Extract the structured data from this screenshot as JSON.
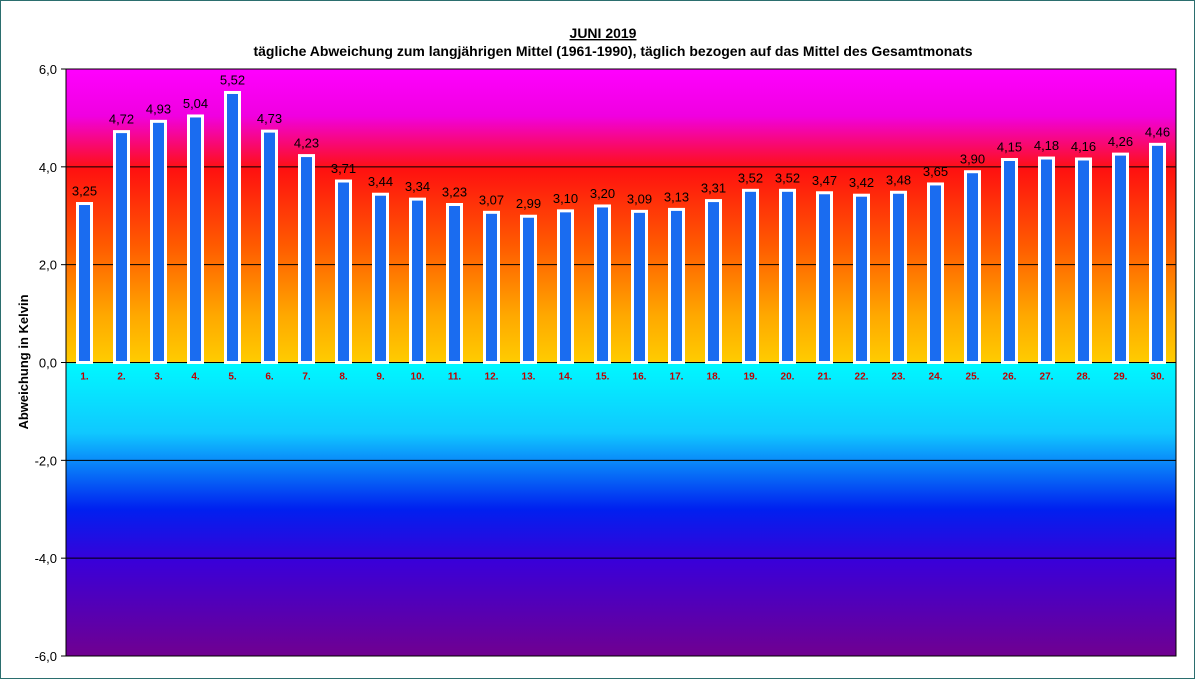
{
  "chart_data": {
    "type": "bar",
    "title": "JUNI 2019",
    "subtitle": "tägliche Abweichung zum langjährigen Mittel (1961-1990), täglich bezogen auf das Mittel des Gesamtmonats",
    "xlabel": "",
    "ylabel": "Abweichung in Kelvin",
    "ylim": [
      -6,
      6
    ],
    "yticks": [
      "6,0",
      "4,0",
      "2,0",
      "0,0",
      "-2,0",
      "-4,0",
      "-6,0"
    ],
    "ytick_values": [
      6,
      4,
      2,
      0,
      -2,
      -4,
      -6
    ],
    "categories": [
      "1.",
      "2.",
      "3.",
      "4.",
      "5.",
      "6.",
      "7.",
      "8.",
      "9.",
      "10.",
      "11.",
      "12.",
      "13.",
      "14.",
      "15.",
      "16.",
      "17.",
      "18.",
      "19.",
      "20.",
      "21.",
      "22.",
      "23.",
      "24.",
      "25.",
      "26.",
      "27.",
      "28.",
      "29.",
      "30."
    ],
    "values": [
      3.25,
      4.72,
      4.93,
      5.04,
      5.52,
      4.73,
      4.23,
      3.71,
      3.44,
      3.34,
      3.23,
      3.07,
      2.99,
      3.1,
      3.2,
      3.09,
      3.13,
      3.31,
      3.52,
      3.52,
      3.47,
      3.42,
      3.48,
      3.65,
      3.9,
      4.15,
      4.18,
      4.16,
      4.26,
      4.46
    ],
    "value_labels": [
      "3,25",
      "4,72",
      "4,93",
      "5,04",
      "5,52",
      "4,73",
      "4,23",
      "3,71",
      "3,44",
      "3,34",
      "3,23",
      "3,07",
      "2,99",
      "3,10",
      "3,20",
      "3,09",
      "3,13",
      "3,31",
      "3,52",
      "3,52",
      "3,47",
      "3,42",
      "3,48",
      "3,65",
      "3,90",
      "4,15",
      "4,18",
      "4,16",
      "4,26",
      "4,46"
    ],
    "grid": true,
    "legend": "none",
    "colors": {
      "bar_fill": "#1a6cf0",
      "bar_border": "#ffffff",
      "xtick_color": "#c00000",
      "bg_top": "#ff00ff",
      "bg_mid_high": "#ff2000",
      "bg_zero_high": "#ffc800",
      "bg_zero_low": "#00f8ff",
      "bg_mid_low": "#0018e0",
      "bg_bottom": "#6a0090"
    }
  }
}
